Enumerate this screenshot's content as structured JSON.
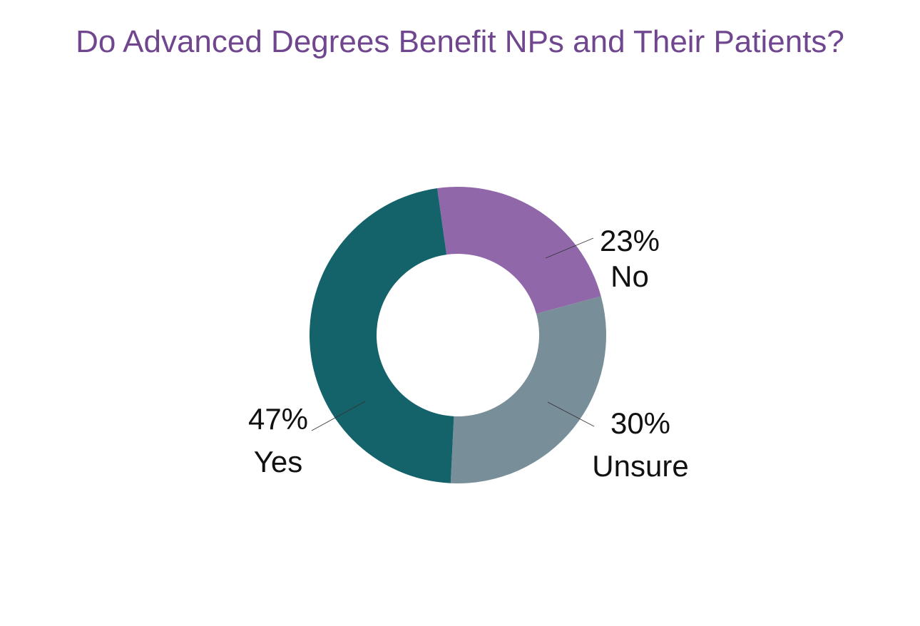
{
  "colors": {
    "title": "#70468f",
    "yes": "#14636a",
    "no": "#9068aa",
    "unsure": "#788e99",
    "leader": "#333333"
  },
  "chart_data": {
    "type": "pie",
    "variant": "donut",
    "title": "Do Advanced Degrees Benefit NPs and Their Patients?",
    "slices": [
      {
        "label": "No",
        "value": 23,
        "display": "23%",
        "color_key": "no"
      },
      {
        "label": "Unsure",
        "value": 30,
        "display": "30%",
        "color_key": "unsure"
      },
      {
        "label": "Yes",
        "value": 47,
        "display": "47%",
        "color_key": "yes"
      }
    ],
    "legend": "none",
    "labels": "outside-with-leader-lines"
  }
}
